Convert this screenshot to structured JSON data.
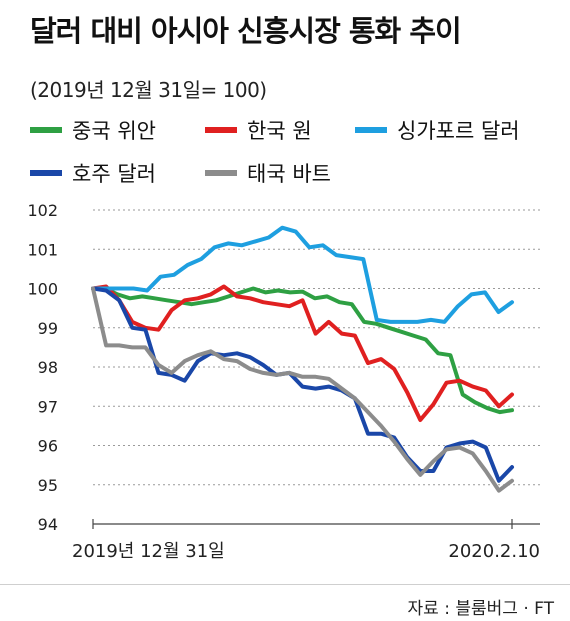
{
  "title": "달러 대비 아시아 신흥시장 통화 추이",
  "subtitle": "(2019년 12월 31일= 100)",
  "source": "자료 : 블룸버그 · FT",
  "chart_data": {
    "type": "line",
    "ylim": [
      94,
      102
    ],
    "yticks": [
      "102",
      "101",
      "100",
      "99",
      "98",
      "97",
      "96",
      "95",
      "94"
    ],
    "grid": "horizontal-dotted",
    "legend_position": "top",
    "x_start_label": "2019년 12월 31일",
    "x_end_label": "2020.2.10",
    "series": [
      {
        "name": "중국 위안",
        "color": "#2ea043",
        "values": [
          100,
          100,
          99.85,
          99.75,
          99.8,
          99.75,
          99.7,
          99.65,
          99.6,
          99.65,
          99.7,
          99.8,
          99.9,
          100,
          99.9,
          99.95,
          99.9,
          99.92,
          99.75,
          99.8,
          99.65,
          99.6,
          99.15,
          99.1,
          99.0,
          98.9,
          98.8,
          98.7,
          98.35,
          98.3,
          97.3,
          97.1,
          96.95,
          96.85,
          96.9
        ]
      },
      {
        "name": "한국 원",
        "color": "#e02020",
        "values": [
          100,
          100.05,
          99.7,
          99.15,
          99.0,
          98.95,
          99.45,
          99.7,
          99.75,
          99.85,
          100.05,
          99.8,
          99.75,
          99.65,
          99.6,
          99.55,
          99.7,
          98.85,
          99.15,
          98.85,
          98.8,
          98.1,
          98.2,
          97.95,
          97.35,
          96.65,
          97.05,
          97.6,
          97.65,
          97.5,
          97.4,
          97.0,
          97.3
        ]
      },
      {
        "name": "싱가포르 달러",
        "color": "#1e9fe0",
        "values": [
          100,
          100,
          100,
          100,
          99.95,
          100.3,
          100.35,
          100.6,
          100.75,
          101.05,
          101.15,
          101.1,
          101.2,
          101.3,
          101.55,
          101.45,
          101.05,
          101.1,
          100.85,
          100.8,
          100.75,
          99.2,
          99.15,
          99.15,
          99.15,
          99.2,
          99.15,
          99.55,
          99.85,
          99.9,
          99.4,
          99.65
        ]
      },
      {
        "name": "호주 달러",
        "color": "#1a47a8",
        "values": [
          100,
          99.95,
          99.7,
          99.0,
          98.95,
          97.85,
          97.8,
          97.65,
          98.15,
          98.35,
          98.3,
          98.35,
          98.25,
          98.05,
          97.8,
          97.85,
          97.5,
          97.45,
          97.5,
          97.4,
          97.2,
          96.3,
          96.3,
          96.2,
          95.7,
          95.35,
          95.35,
          95.95,
          96.05,
          96.1,
          95.95,
          95.1,
          95.45
        ]
      },
      {
        "name": "태국 바트",
        "color": "#8c8c8c",
        "values": [
          100,
          98.55,
          98.55,
          98.5,
          98.5,
          98.05,
          97.85,
          98.15,
          98.3,
          98.4,
          98.2,
          98.15,
          97.95,
          97.85,
          97.8,
          97.85,
          97.75,
          97.75,
          97.7,
          97.45,
          97.2,
          96.85,
          96.5,
          96.1,
          95.65,
          95.25,
          95.6,
          95.9,
          95.95,
          95.8,
          95.35,
          94.85,
          95.1
        ]
      }
    ]
  }
}
